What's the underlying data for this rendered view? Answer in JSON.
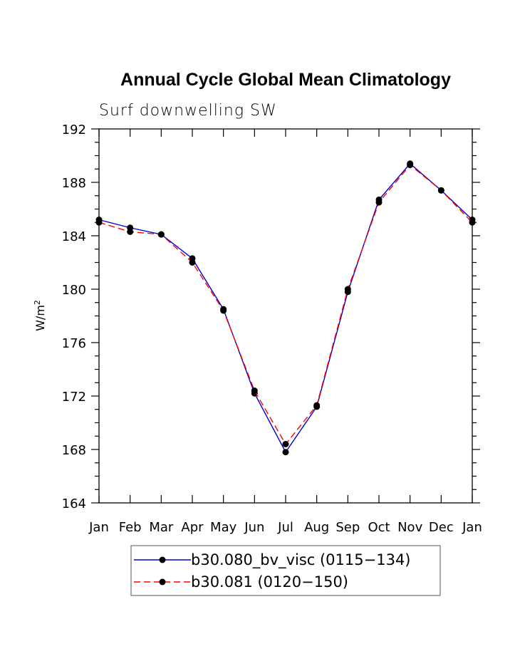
{
  "chart_data": {
    "type": "line",
    "title": "Annual Cycle Global Mean Climatology",
    "subtitle": "Surf downwelling SW",
    "ylabel": "W/m",
    "ylabel_superscript": "2",
    "xlabel": "",
    "categories": [
      "Jan",
      "Feb",
      "Mar",
      "Apr",
      "May",
      "Jun",
      "Jul",
      "Aug",
      "Sep",
      "Oct",
      "Nov",
      "Dec",
      "Jan"
    ],
    "ylim": [
      164,
      192
    ],
    "yticks": [
      164,
      168,
      172,
      176,
      180,
      184,
      188,
      192
    ],
    "series": [
      {
        "name": "b30.080_bv_visc (0115−134)",
        "color": "#0000cc",
        "dash": "solid",
        "values": [
          185.2,
          184.6,
          184.1,
          182.3,
          178.5,
          172.2,
          167.8,
          171.2,
          179.8,
          186.7,
          189.4,
          187.4,
          185.2
        ]
      },
      {
        "name": "b30.081 (0120−150)",
        "color": "#ff0000",
        "dash": "dashed",
        "values": [
          185.0,
          184.3,
          184.1,
          182.0,
          178.4,
          172.4,
          168.4,
          171.3,
          180.0,
          186.5,
          189.3,
          187.4,
          185.0
        ]
      }
    ],
    "grid": false,
    "legend": "bottom-center"
  }
}
